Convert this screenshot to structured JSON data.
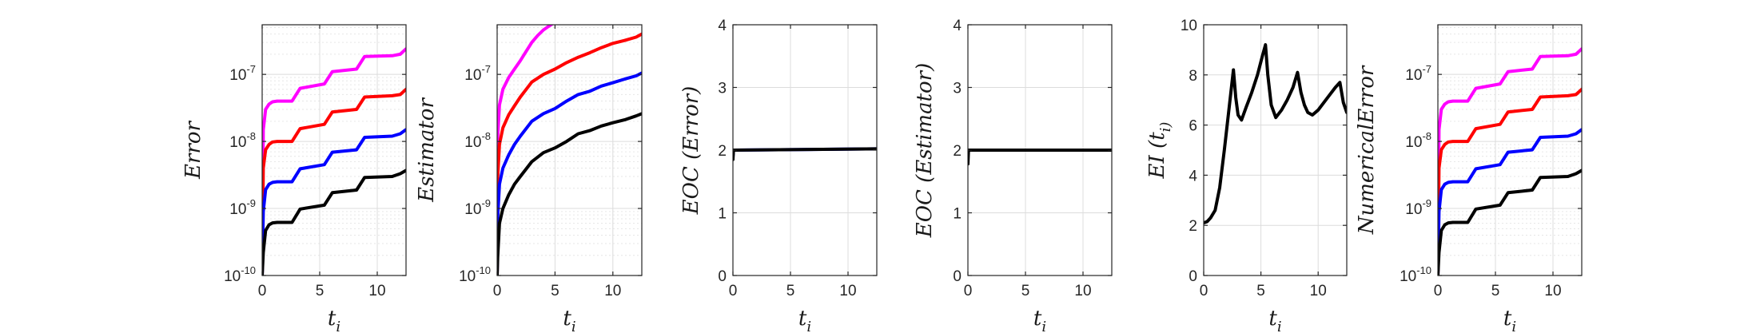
{
  "chart_data": [
    {
      "type": "line",
      "xlabel": "t_i",
      "ylabel": "Error",
      "yscale": "log",
      "xlim": [
        0,
        12.5
      ],
      "ylim": [
        1e-10,
        5.5e-07
      ],
      "xticks": [
        0,
        5,
        10
      ],
      "xtick_labels": [
        "0",
        "5",
        "10"
      ],
      "yticks": [
        1e-10,
        1e-09,
        1e-08,
        1e-07
      ],
      "ytick_labels": [
        "10^-10",
        "10^-9",
        "10^-8",
        "10^-7"
      ],
      "grid": true,
      "series": [
        {
          "color": "#ff00ff",
          "x": [
            0,
            0.1,
            0.3,
            0.6,
            0.9,
            1.3,
            2.6,
            3.3,
            5.4,
            6.1,
            8.2,
            8.9,
            11.3,
            12.0,
            12.5
          ],
          "y": [
            1e-10,
            1.5e-08,
            3e-08,
            3.6e-08,
            3.9e-08,
            4e-08,
            4e-08,
            6.2e-08,
            7.2e-08,
            1.1e-07,
            1.2e-07,
            1.85e-07,
            1.9e-07,
            2e-07,
            2.4e-07
          ]
        },
        {
          "color": "#ff0000",
          "x": [
            0,
            0.1,
            0.3,
            0.6,
            0.9,
            1.3,
            2.6,
            3.3,
            5.4,
            6.1,
            8.2,
            8.9,
            11.3,
            12.0,
            12.5
          ],
          "y": [
            1e-10,
            4e-09,
            7.5e-09,
            9e-09,
            9.8e-09,
            1e-08,
            1e-08,
            1.55e-08,
            1.8e-08,
            2.75e-08,
            3e-08,
            4.6e-08,
            4.8e-08,
            5e-08,
            6e-08
          ]
        },
        {
          "color": "#0000ff",
          "x": [
            0,
            0.1,
            0.3,
            0.6,
            0.9,
            1.3,
            2.6,
            3.3,
            5.4,
            6.1,
            8.2,
            8.9,
            11.3,
            12.0,
            12.5
          ],
          "y": [
            1e-10,
            9e-10,
            1.9e-09,
            2.3e-09,
            2.45e-09,
            2.5e-09,
            2.5e-09,
            3.9e-09,
            4.5e-09,
            6.9e-09,
            7.5e-09,
            1.15e-08,
            1.2e-08,
            1.3e-08,
            1.5e-08
          ]
        },
        {
          "color": "#000000",
          "x": [
            0,
            0.1,
            0.3,
            0.6,
            0.9,
            1.3,
            2.6,
            3.3,
            5.4,
            6.1,
            8.2,
            8.9,
            11.3,
            12.0,
            12.5
          ],
          "y": [
            1e-10,
            2.2e-10,
            4.7e-10,
            5.7e-10,
            6.1e-10,
            6.2e-10,
            6.2e-10,
            9.8e-10,
            1.12e-09,
            1.72e-09,
            1.88e-09,
            2.9e-09,
            3e-09,
            3.3e-09,
            3.7e-09
          ]
        }
      ]
    },
    {
      "type": "line",
      "xlabel": "t_i",
      "ylabel": "Estimator",
      "yscale": "log",
      "xlim": [
        0,
        12.5
      ],
      "ylim": [
        1e-10,
        5.5e-07
      ],
      "xticks": [
        0,
        5,
        10
      ],
      "xtick_labels": [
        "0",
        "5",
        "10"
      ],
      "yticks": [
        1e-10,
        1e-09,
        1e-08,
        1e-07
      ],
      "ytick_labels": [
        "10^-10",
        "10^-9",
        "10^-8",
        "10^-7"
      ],
      "grid": true,
      "series": [
        {
          "color": "#ff00ff",
          "x": [
            0,
            0.05,
            0.2,
            0.5,
            1,
            1.5,
            2,
            2.5,
            3,
            3.5,
            4,
            4.5,
            5
          ],
          "y": [
            1e-10,
            1.2e-08,
            3.5e-08,
            6e-08,
            9e-08,
            1.2e-07,
            1.6e-07,
            2.2e-07,
            3e-07,
            3.8e-07,
            4.6e-07,
            5.3e-07,
            6e-07
          ]
        },
        {
          "color": "#ff0000",
          "x": [
            0,
            0.05,
            0.2,
            0.5,
            1,
            1.5,
            2,
            3,
            4,
            5,
            6,
            7,
            8,
            9,
            10,
            11,
            12,
            12.5
          ],
          "y": [
            1e-10,
            3e-09,
            9e-09,
            1.6e-08,
            2.5e-08,
            3.4e-08,
            4.6e-08,
            7.7e-08,
            1e-07,
            1.2e-07,
            1.5e-07,
            1.8e-07,
            2.1e-07,
            2.5e-07,
            2.9e-07,
            3.2e-07,
            3.6e-07,
            4e-07
          ]
        },
        {
          "color": "#0000ff",
          "x": [
            0,
            0.05,
            0.2,
            0.5,
            1,
            1.5,
            2,
            3,
            4,
            5,
            6,
            7,
            8,
            9,
            10,
            11,
            12,
            12.5
          ],
          "y": [
            1e-10,
            7.5e-10,
            2.3e-09,
            4e-09,
            6.3e-09,
            9e-09,
            1.2e-08,
            2e-08,
            2.6e-08,
            3.1e-08,
            4e-08,
            5e-08,
            5.6e-08,
            6.7e-08,
            7.5e-08,
            8.5e-08,
            9.5e-08,
            1.05e-07
          ]
        },
        {
          "color": "#000000",
          "x": [
            0,
            0.05,
            0.2,
            0.5,
            1,
            1.5,
            2,
            3,
            4,
            5,
            6,
            7,
            8,
            9,
            10,
            11,
            12,
            12.5
          ],
          "y": [
            1e-10,
            1.9e-10,
            6e-10,
            1e-09,
            1.6e-09,
            2.3e-09,
            3e-09,
            5e-09,
            6.8e-09,
            8e-09,
            1e-08,
            1.3e-08,
            1.45e-08,
            1.7e-08,
            1.9e-08,
            2.1e-08,
            2.4e-08,
            2.6e-08
          ]
        }
      ]
    },
    {
      "type": "line",
      "xlabel": "t_i",
      "ylabel": "EOC (Error)",
      "yscale": "linear",
      "xlim": [
        0,
        12.5
      ],
      "ylim": [
        0,
        4
      ],
      "xticks": [
        0,
        5,
        10
      ],
      "xtick_labels": [
        "0",
        "5",
        "10"
      ],
      "yticks": [
        0,
        1,
        2,
        3,
        4
      ],
      "ytick_labels": [
        "0",
        "1",
        "2",
        "3",
        "4"
      ],
      "grid": true,
      "series": [
        {
          "color": "#0000ff",
          "x": [
            0,
            0.05,
            0.1,
            12.5
          ],
          "y": [
            1.9,
            2.0,
            2.0,
            2.02
          ]
        },
        {
          "color": "#000000",
          "x": [
            0,
            0.05,
            0.1,
            12.5
          ],
          "y": [
            1.85,
            2.0,
            2.0,
            2.02
          ]
        }
      ]
    },
    {
      "type": "line",
      "xlabel": "t_i",
      "ylabel": "EOC (Estimator)",
      "yscale": "linear",
      "xlim": [
        0,
        12.5
      ],
      "ylim": [
        0,
        4
      ],
      "xticks": [
        0,
        5,
        10
      ],
      "xtick_labels": [
        "0",
        "5",
        "10"
      ],
      "yticks": [
        0,
        1,
        2,
        3,
        4
      ],
      "ytick_labels": [
        "0",
        "1",
        "2",
        "3",
        "4"
      ],
      "grid": true,
      "series": [
        {
          "color": "#000000",
          "x": [
            0,
            0.05,
            0.1,
            12.5
          ],
          "y": [
            1.78,
            2.0,
            2.0,
            2.0
          ]
        }
      ]
    },
    {
      "type": "line",
      "xlabel": "t_i",
      "ylabel": "EI (t_i)",
      "yscale": "linear",
      "xlim": [
        0,
        12.5
      ],
      "ylim": [
        0,
        10
      ],
      "xticks": [
        0,
        5,
        10
      ],
      "xtick_labels": [
        "0",
        "5",
        "10"
      ],
      "yticks": [
        0,
        2,
        4,
        6,
        8,
        10
      ],
      "ytick_labels": [
        "0",
        "2",
        "4",
        "6",
        "8",
        "10"
      ],
      "grid": true,
      "series": [
        {
          "color": "#000000",
          "x": [
            0,
            0.3,
            0.6,
            1.0,
            1.4,
            1.8,
            2.2,
            2.6,
            2.8,
            3.0,
            3.3,
            3.7,
            4.2,
            4.7,
            5.1,
            5.4,
            5.6,
            5.9,
            6.3,
            6.8,
            7.3,
            7.8,
            8.2,
            8.5,
            8.8,
            9.1,
            9.5,
            10.0,
            10.5,
            11.0,
            11.5,
            11.9,
            12.2,
            12.5
          ],
          "y": [
            2.1,
            2.15,
            2.3,
            2.6,
            3.5,
            5.0,
            6.6,
            8.2,
            7.1,
            6.4,
            6.2,
            6.7,
            7.3,
            8.0,
            8.7,
            9.2,
            8.0,
            6.8,
            6.3,
            6.6,
            7.0,
            7.5,
            8.1,
            7.3,
            6.8,
            6.5,
            6.4,
            6.6,
            6.9,
            7.2,
            7.5,
            7.7,
            6.9,
            6.5
          ]
        }
      ]
    },
    {
      "type": "line",
      "xlabel": "t_i",
      "ylabel": "NumericalError",
      "yscale": "log",
      "xlim": [
        0,
        12.5
      ],
      "ylim": [
        1e-10,
        5.5e-07
      ],
      "xticks": [
        0,
        5,
        10
      ],
      "xtick_labels": [
        "0",
        "5",
        "10"
      ],
      "yticks": [
        1e-10,
        1e-09,
        1e-08,
        1e-07
      ],
      "ytick_labels": [
        "10^-10",
        "10^-9",
        "10^-8",
        "10^-7"
      ],
      "grid": true,
      "series": [
        {
          "color": "#ff00ff",
          "x": [
            0,
            0.1,
            0.3,
            0.6,
            0.9,
            1.3,
            2.6,
            3.3,
            5.4,
            6.1,
            8.2,
            8.9,
            11.3,
            12.0,
            12.5
          ],
          "y": [
            1e-10,
            1.5e-08,
            3e-08,
            3.6e-08,
            3.9e-08,
            4e-08,
            4e-08,
            6.2e-08,
            7.2e-08,
            1.1e-07,
            1.2e-07,
            1.85e-07,
            1.9e-07,
            2e-07,
            2.4e-07
          ]
        },
        {
          "color": "#ff0000",
          "x": [
            0,
            0.1,
            0.3,
            0.6,
            0.9,
            1.3,
            2.6,
            3.3,
            5.4,
            6.1,
            8.2,
            8.9,
            11.3,
            12.0,
            12.5
          ],
          "y": [
            1e-10,
            4e-09,
            7.5e-09,
            9e-09,
            9.8e-09,
            1e-08,
            1e-08,
            1.55e-08,
            1.8e-08,
            2.75e-08,
            3e-08,
            4.6e-08,
            4.8e-08,
            5e-08,
            6e-08
          ]
        },
        {
          "color": "#0000ff",
          "x": [
            0,
            0.1,
            0.3,
            0.6,
            0.9,
            1.3,
            2.6,
            3.3,
            5.4,
            6.1,
            8.2,
            8.9,
            11.3,
            12.0,
            12.5
          ],
          "y": [
            1e-10,
            9e-10,
            1.9e-09,
            2.3e-09,
            2.45e-09,
            2.5e-09,
            2.5e-09,
            3.9e-09,
            4.5e-09,
            6.9e-09,
            7.5e-09,
            1.15e-08,
            1.2e-08,
            1.3e-08,
            1.5e-08
          ]
        },
        {
          "color": "#000000",
          "x": [
            0,
            0.1,
            0.3,
            0.6,
            0.9,
            1.3,
            2.6,
            3.3,
            5.4,
            6.1,
            8.2,
            8.9,
            11.3,
            12.0,
            12.5
          ],
          "y": [
            1e-10,
            2.2e-10,
            4.7e-10,
            5.7e-10,
            6.1e-10,
            6.2e-10,
            6.2e-10,
            9.8e-10,
            1.12e-09,
            1.72e-09,
            1.88e-09,
            2.9e-09,
            3e-09,
            3.3e-09,
            3.7e-09
          ]
        }
      ]
    }
  ]
}
